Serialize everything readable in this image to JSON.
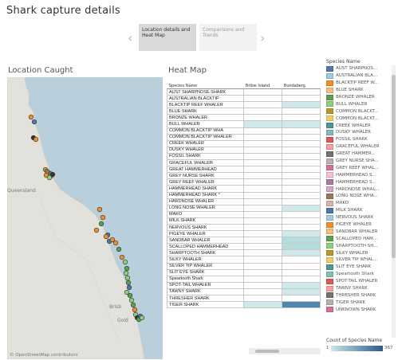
{
  "page_title": "Shark capture details",
  "story": {
    "prev_icon": "chevron-left-icon",
    "next_icon": "chevron-right-icon",
    "points": [
      {
        "label": "Location details and Heat Map",
        "active": true
      },
      {
        "label": "Comparisons and Trends",
        "active": false
      }
    ]
  },
  "map": {
    "title": "Location Caught",
    "region_label": "Queensland",
    "attribution": "© OpenStreetMap contributors",
    "city_labels": [
      "Brisb",
      "Gold"
    ]
  },
  "heatmap": {
    "title": "Heat Map",
    "row_header": "Species Name",
    "columns": [
      "Bribie Island",
      "Bundaberg"
    ],
    "rows": [
      {
        "name": "AUST SHARPNOSE SHARK",
        "values": [
          0,
          0
        ]
      },
      {
        "name": "AUSTRALIAN BLACKTIP",
        "values": [
          0,
          0
        ]
      },
      {
        "name": "BLACKTIP REEF WHALER",
        "values": [
          0,
          1
        ]
      },
      {
        "name": "BLUE SHARK",
        "values": [
          0,
          0
        ]
      },
      {
        "name": "BRONZE WHALER",
        "values": [
          0,
          0
        ]
      },
      {
        "name": "BULL WHALER",
        "values": [
          1,
          1
        ]
      },
      {
        "name": "COMMON BLACKTIP WHA",
        "values": [
          0,
          0
        ]
      },
      {
        "name": "COMMON BLACKTIP WHALER",
        "values": [
          0,
          0
        ]
      },
      {
        "name": "CREEK WHALER",
        "values": [
          0,
          0
        ]
      },
      {
        "name": "DUSKY WHALER",
        "values": [
          0,
          0
        ]
      },
      {
        "name": "FOSSIL SHARK",
        "values": [
          0,
          0
        ]
      },
      {
        "name": "GRACEFUL WHALER",
        "values": [
          0,
          0
        ]
      },
      {
        "name": "GREAT HAMMERHEAD",
        "values": [
          0,
          0
        ]
      },
      {
        "name": "GREY NURSE SHARK",
        "values": [
          0,
          0
        ]
      },
      {
        "name": "GREY REEF WHALER",
        "values": [
          0,
          0
        ]
      },
      {
        "name": "HAMMERHEAD SHARK",
        "values": [
          0,
          0
        ]
      },
      {
        "name": "HAMMERHEAD SHARK *",
        "values": [
          0,
          0
        ]
      },
      {
        "name": "HARDNOSE WHALER",
        "values": [
          0,
          0
        ]
      },
      {
        "name": "LONG NOSE WHALER",
        "values": [
          0,
          1
        ]
      },
      {
        "name": "MAKO",
        "values": [
          0,
          0
        ]
      },
      {
        "name": "MILK SHARK",
        "values": [
          0,
          0
        ]
      },
      {
        "name": "NERVOUS SHARK",
        "values": [
          0,
          0
        ]
      },
      {
        "name": "PIGEYE WHALER",
        "values": [
          0,
          1
        ]
      },
      {
        "name": "SANDBAR WHALER",
        "values": [
          0,
          2
        ]
      },
      {
        "name": "SCALLOPED HAMMERHEAD",
        "values": [
          0,
          2
        ]
      },
      {
        "name": "SHARPTOOTH SHARK",
        "values": [
          0,
          1
        ]
      },
      {
        "name": "SILKY WHALER",
        "values": [
          0,
          0
        ]
      },
      {
        "name": "SILVER TIP WHALER",
        "values": [
          0,
          0
        ]
      },
      {
        "name": "SLIT EYE SHARK",
        "values": [
          0,
          0
        ]
      },
      {
        "name": "Speartooth Shark",
        "values": [
          0,
          0
        ]
      },
      {
        "name": "SPOT-TAIL WHALER",
        "values": [
          0,
          1
        ]
      },
      {
        "name": "TAWNY SHARK",
        "values": [
          0,
          1
        ]
      },
      {
        "name": "THRESHER SHARK",
        "values": [
          0,
          0
        ]
      },
      {
        "name": "TIGER SHARK",
        "values": [
          1,
          4
        ]
      }
    ]
  },
  "legend": {
    "title": "Species Name",
    "items": [
      {
        "label": "AUST SHARPNOS...",
        "color": "#4e79a7"
      },
      {
        "label": "AUSTRALIAN BLA...",
        "color": "#a0cbe8"
      },
      {
        "label": "BLACKTIP REEF W...",
        "color": "#f28e2b"
      },
      {
        "label": "BLUE SHARK",
        "color": "#ffbe7d"
      },
      {
        "label": "BRONZE WHALER",
        "color": "#59a14f"
      },
      {
        "label": "BULL WHALER",
        "color": "#8cd17d"
      },
      {
        "label": "COMMON BLACKT...",
        "color": "#b6992d"
      },
      {
        "label": "COMMON BLACKT...",
        "color": "#f1ce63"
      },
      {
        "label": "CREEK WHALER",
        "color": "#499894"
      },
      {
        "label": "DUSKY WHALER",
        "color": "#86bcb6"
      },
      {
        "label": "FOSSIL SHARK",
        "color": "#e15759"
      },
      {
        "label": "GRACEFUL WHALER",
        "color": "#ff9d9a"
      },
      {
        "label": "GREAT HAMMER...",
        "color": "#79706e"
      },
      {
        "label": "GREY NURSE SHA...",
        "color": "#bab0ac"
      },
      {
        "label": "GREY REEF WHAL...",
        "color": "#d37295"
      },
      {
        "label": "HAMMERHEAD S...",
        "color": "#fabfd2"
      },
      {
        "label": "HAMMERHEAD S...",
        "color": "#b07aa1"
      },
      {
        "label": "HARDNOSE WHAL...",
        "color": "#d4a6c8"
      },
      {
        "label": "LONG NOSE WHA...",
        "color": "#9d7660"
      },
      {
        "label": "MAKO",
        "color": "#d7b5a6"
      },
      {
        "label": "MILK SHARK",
        "color": "#4e79a7"
      },
      {
        "label": "NERVOUS SHARK",
        "color": "#a0cbe8"
      },
      {
        "label": "PIGEYE WHALER",
        "color": "#f28e2b"
      },
      {
        "label": "SANDBAR WHALER",
        "color": "#ffbe7d"
      },
      {
        "label": "SCALLOPED HAM...",
        "color": "#59a14f"
      },
      {
        "label": "SHARPTOOTH SH...",
        "color": "#8cd17d"
      },
      {
        "label": "SILKY WHALER",
        "color": "#b6992d"
      },
      {
        "label": "SILVER TIP WHAL...",
        "color": "#f1ce63"
      },
      {
        "label": "SLIT EYE SHARK",
        "color": "#499894"
      },
      {
        "label": "Speartooth Shark",
        "color": "#86bcb6"
      },
      {
        "label": "SPOT-TAIL WHALER",
        "color": "#e15759"
      },
      {
        "label": "TAWNY SHARK",
        "color": "#ff9d9a"
      },
      {
        "label": "THRESHER SHARK",
        "color": "#79706e"
      },
      {
        "label": "TIGER SHARK",
        "color": "#bab0ac"
      },
      {
        "label": "UNKNOWN SHARK",
        "color": "#d37295"
      }
    ]
  },
  "color_scale": {
    "title": "Count of Species Name",
    "min": "1",
    "max": "367",
    "min_color": "#c9e6e8",
    "max_color": "#2a5b8c"
  }
}
